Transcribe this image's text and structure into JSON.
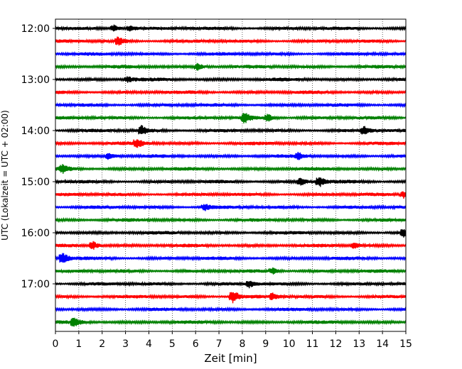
{
  "chart_data": {
    "type": "line",
    "title": "",
    "xlabel": "Zeit  [min]",
    "ylabel": "UTC (Lokalzeit = UTC + 02:00)",
    "xlim": [
      0,
      15
    ],
    "x_ticks": [
      "0",
      "1",
      "2",
      "3",
      "4",
      "5",
      "6",
      "7",
      "8",
      "9",
      "10",
      "11",
      "12",
      "13",
      "14",
      "15"
    ],
    "y_ticks": [
      "12:00",
      "13:00",
      "14:00",
      "15:00",
      "16:00",
      "17:00"
    ],
    "grid": "vertical dotted",
    "colors": [
      "#000000",
      "#ff0000",
      "#0000ff",
      "#008000"
    ],
    "trace_interval_min": 15,
    "series": [
      {
        "start": "12:00",
        "color": "#000000"
      },
      {
        "start": "12:15",
        "color": "#ff0000"
      },
      {
        "start": "12:30",
        "color": "#0000ff"
      },
      {
        "start": "12:45",
        "color": "#008000"
      },
      {
        "start": "13:00",
        "color": "#000000"
      },
      {
        "start": "13:15",
        "color": "#ff0000"
      },
      {
        "start": "13:30",
        "color": "#0000ff"
      },
      {
        "start": "13:45",
        "color": "#008000"
      },
      {
        "start": "14:00",
        "color": "#000000"
      },
      {
        "start": "14:15",
        "color": "#ff0000"
      },
      {
        "start": "14:30",
        "color": "#0000ff"
      },
      {
        "start": "14:45",
        "color": "#008000"
      },
      {
        "start": "15:00",
        "color": "#000000"
      },
      {
        "start": "15:15",
        "color": "#ff0000"
      },
      {
        "start": "15:30",
        "color": "#0000ff"
      },
      {
        "start": "15:45",
        "color": "#008000"
      },
      {
        "start": "16:00",
        "color": "#000000"
      },
      {
        "start": "16:15",
        "color": "#ff0000"
      },
      {
        "start": "16:30",
        "color": "#0000ff"
      },
      {
        "start": "16:45",
        "color": "#008000"
      },
      {
        "start": "17:00",
        "color": "#000000"
      },
      {
        "start": "17:15",
        "color": "#ff0000"
      },
      {
        "start": "17:30",
        "color": "#0000ff"
      },
      {
        "start": "17:45",
        "color": "#008000"
      }
    ],
    "events": [
      {
        "start": "12:00",
        "t": 2.5,
        "amp": 1.0
      },
      {
        "start": "12:00",
        "t": 3.2,
        "amp": 0.8
      },
      {
        "start": "12:15",
        "t": 2.7,
        "amp": 1.2
      },
      {
        "start": "12:45",
        "t": 6.1,
        "amp": 0.9
      },
      {
        "start": "13:00",
        "t": 3.1,
        "amp": 0.7
      },
      {
        "start": "13:45",
        "t": 8.1,
        "amp": 1.4
      },
      {
        "start": "13:45",
        "t": 9.1,
        "amp": 1.0
      },
      {
        "start": "14:00",
        "t": 3.7,
        "amp": 1.4
      },
      {
        "start": "14:00",
        "t": 13.2,
        "amp": 1.1
      },
      {
        "start": "14:15",
        "t": 3.5,
        "amp": 1.3
      },
      {
        "start": "14:30",
        "t": 2.3,
        "amp": 1.0
      },
      {
        "start": "14:30",
        "t": 10.4,
        "amp": 0.9
      },
      {
        "start": "14:45",
        "t": 0.3,
        "amp": 1.0
      },
      {
        "start": "15:00",
        "t": 11.3,
        "amp": 1.4
      },
      {
        "start": "15:00",
        "t": 10.5,
        "amp": 1.0
      },
      {
        "start": "15:15",
        "t": 14.9,
        "amp": 1.0
      },
      {
        "start": "15:30",
        "t": 6.4,
        "amp": 0.9
      },
      {
        "start": "16:00",
        "t": 14.9,
        "amp": 1.0
      },
      {
        "start": "16:15",
        "t": 1.6,
        "amp": 1.3
      },
      {
        "start": "16:15",
        "t": 12.8,
        "amp": 0.9
      },
      {
        "start": "16:30",
        "t": 0.3,
        "amp": 1.6
      },
      {
        "start": "16:45",
        "t": 9.3,
        "amp": 0.8
      },
      {
        "start": "17:00",
        "t": 8.3,
        "amp": 0.9
      },
      {
        "start": "17:15",
        "t": 7.6,
        "amp": 2.0
      },
      {
        "start": "17:15",
        "t": 9.3,
        "amp": 0.8
      },
      {
        "start": "17:45",
        "t": 0.8,
        "amp": 1.1
      }
    ]
  }
}
